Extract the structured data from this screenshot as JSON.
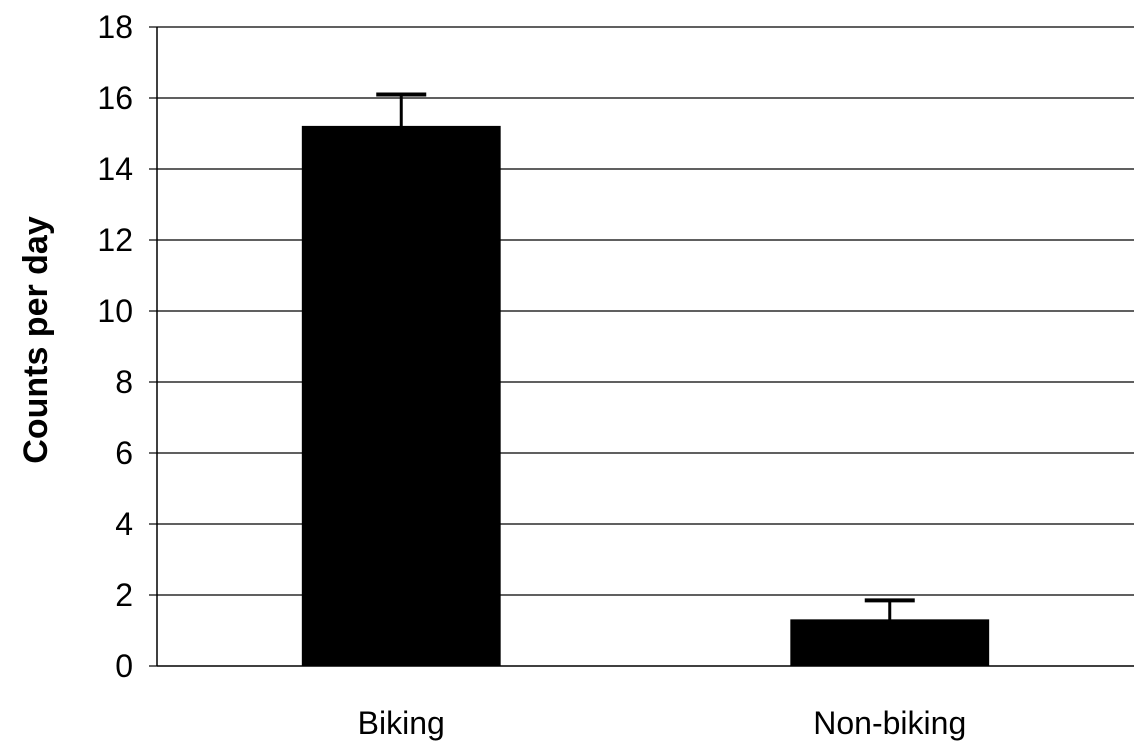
{
  "chart_data": {
    "type": "bar",
    "title": "",
    "xlabel": "",
    "ylabel": "Counts per day",
    "categories": [
      "Biking",
      "Non-biking"
    ],
    "values": [
      15.2,
      1.3
    ],
    "errors": [
      0.9,
      0.55
    ],
    "ylim": [
      0,
      18
    ],
    "yticks": [
      "0",
      "2",
      "4",
      "6",
      "8",
      "10",
      "12",
      "14",
      "16",
      "18"
    ],
    "grid": "horizontal",
    "legend": "none",
    "bar_color": "#000000"
  }
}
